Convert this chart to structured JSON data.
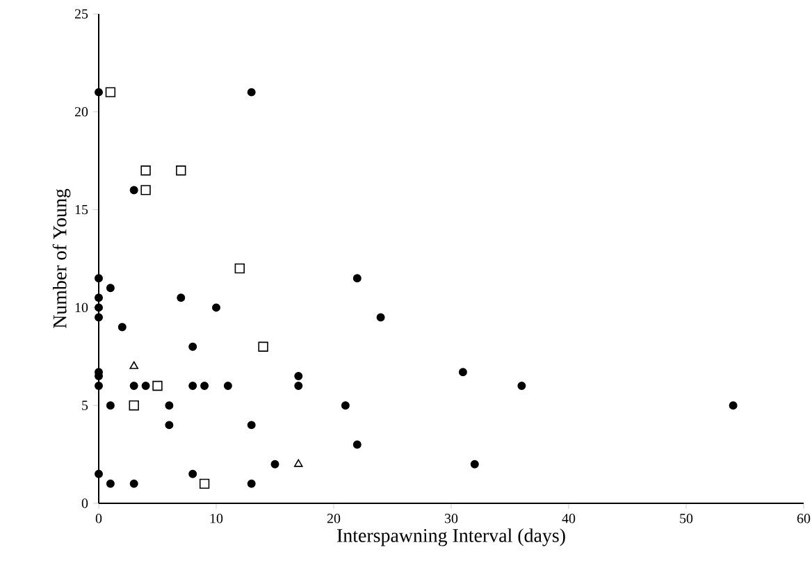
{
  "chart_data": {
    "type": "scatter",
    "xlabel": "Interspawning Interval (days)",
    "ylabel": "Number of Young",
    "xlim": [
      0,
      60
    ],
    "ylim": [
      0,
      25
    ],
    "xticks": [
      0,
      10,
      20,
      30,
      40,
      50,
      60
    ],
    "yticks": [
      0,
      5,
      10,
      15,
      20,
      25
    ],
    "grid": false,
    "series": [
      {
        "color": "#000000",
        "marker": "circle",
        "x": [
          0,
          13,
          3,
          0,
          1,
          0,
          0,
          0,
          7,
          10,
          2,
          22,
          24,
          8,
          0,
          0,
          0,
          3,
          4,
          8,
          9,
          11,
          17,
          17,
          31,
          36,
          54,
          1,
          6,
          6,
          13,
          21,
          22,
          15,
          32,
          0,
          1,
          3,
          8,
          13
        ],
        "values": [
          21,
          21,
          16,
          11.5,
          11,
          10.5,
          10,
          9.5,
          10.5,
          10,
          9,
          11.5,
          9.5,
          8,
          6.7,
          6.5,
          6,
          6,
          6,
          6,
          6,
          6,
          6.5,
          6,
          6.7,
          6,
          5,
          5,
          5,
          4,
          4,
          5,
          3,
          2,
          2,
          1.5,
          1,
          1,
          1.5,
          1
        ]
      },
      {
        "color": "#000000",
        "marker": "square",
        "x": [
          1,
          4,
          7,
          4,
          12,
          14,
          5,
          3,
          9
        ],
        "values": [
          21,
          17,
          17,
          16,
          12,
          8,
          6,
          5,
          1
        ]
      },
      {
        "color": "#000000",
        "marker": "triangle",
        "x": [
          3,
          17
        ],
        "values": [
          7,
          2
        ]
      }
    ]
  }
}
